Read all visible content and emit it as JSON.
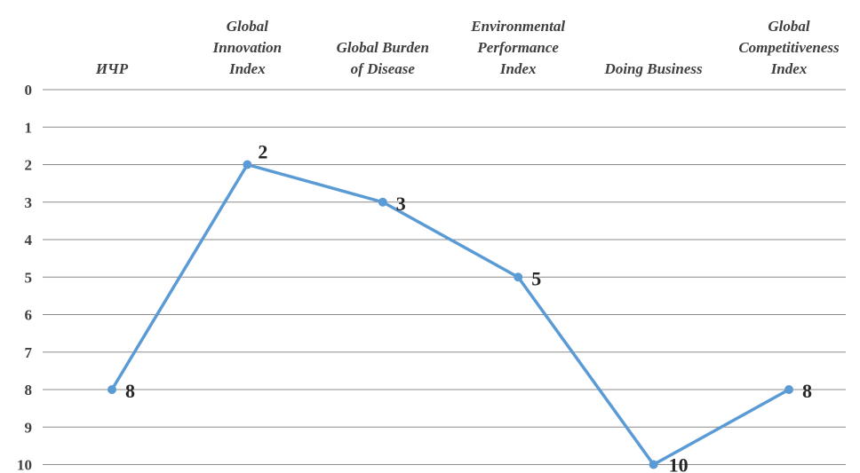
{
  "chart_data": {
    "type": "line",
    "categories": [
      [
        "ИЧР"
      ],
      [
        "Global",
        "Innovation",
        "Index"
      ],
      [
        "Global Burden",
        "of Disease"
      ],
      [
        "Environmental",
        "Performance",
        "Index"
      ],
      [
        "Doing Business"
      ],
      [
        "Global",
        "Competitiveness",
        "Index"
      ]
    ],
    "series": [
      {
        "values": [
          8,
          2,
          3,
          5,
          10,
          8
        ],
        "data_labels": [
          "8",
          "2",
          "3",
          "5",
          "10",
          "8"
        ]
      }
    ],
    "y_axis": {
      "reversed": true,
      "ylim": [
        0,
        10
      ],
      "ticks": [
        0,
        1,
        2,
        3,
        4,
        5,
        6,
        7,
        8,
        9,
        10
      ],
      "tick_labels": [
        "0",
        "1",
        "2",
        "3",
        "4",
        "5",
        "6",
        "7",
        "8",
        "9",
        "10"
      ]
    },
    "x_axis_position": "top",
    "grid": true,
    "legend": "none",
    "colors": {
      "series": "#5b9bd5",
      "grid": "#8c8c8c",
      "text": "#404040"
    }
  }
}
